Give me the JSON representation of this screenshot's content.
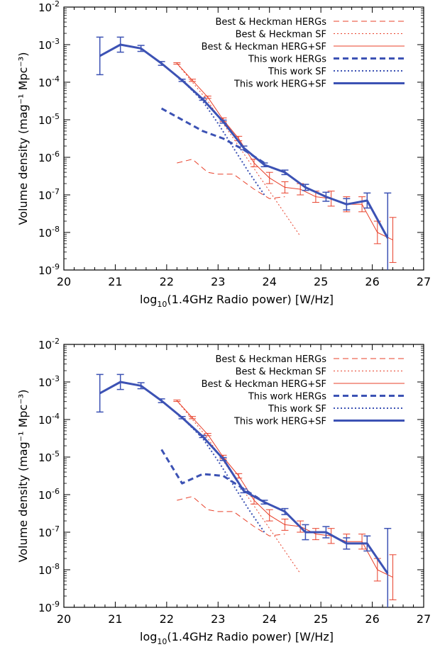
{
  "panels": [
    {
      "id": "top",
      "xlabel_pre": "log",
      "xlabel_sub": "10",
      "xlabel_post": "(1.4GHz Radio power) [W/Hz]",
      "ylabel": "Volume density (mag⁻¹ Mpc⁻³)"
    },
    {
      "id": "bottom",
      "xlabel_pre": "log",
      "xlabel_sub": "10",
      "xlabel_post": "(1.4GHz Radio power) [W/Hz]",
      "ylabel": "Volume density (mag⁻¹ Mpc⁻³)"
    }
  ],
  "colors": {
    "red": "#e8402a",
    "blue": "#3c52b4"
  },
  "chart_data": [
    {
      "type": "line",
      "title": "",
      "xlabel": "log10(1.4GHz Radio power) [W/Hz]",
      "ylabel": "Volume density (mag^-1 Mpc^-3)",
      "xlim": [
        20,
        27
      ],
      "ylim_log10": [
        -9,
        -2
      ],
      "yscale": "log",
      "xticks": [
        "20",
        "21",
        "22",
        "23",
        "24",
        "25",
        "26",
        "27"
      ],
      "yticks": [
        {
          "base": "10",
          "exp": "-2"
        },
        {
          "base": "10",
          "exp": "-3"
        },
        {
          "base": "10",
          "exp": "-4"
        },
        {
          "base": "10",
          "exp": "-5"
        },
        {
          "base": "10",
          "exp": "-6"
        },
        {
          "base": "10",
          "exp": "-7"
        },
        {
          "base": "10",
          "exp": "-8"
        },
        {
          "base": "10",
          "exp": "-9"
        }
      ],
      "legend_position": "top-right",
      "series": [
        {
          "name": "Best & Heckman HERGs",
          "color": "red",
          "style": "dashed",
          "width": 1,
          "points": [
            [
              22.2,
              -6.15
            ],
            [
              22.5,
              -6.05
            ],
            [
              22.8,
              -6.4
            ],
            [
              23.0,
              -6.45
            ],
            [
              23.3,
              -6.45
            ],
            [
              23.7,
              -6.85
            ],
            [
              24.0,
              -7.1
            ],
            [
              24.3,
              -7.05
            ]
          ]
        },
        {
          "name": "Best & Heckman SF",
          "color": "red",
          "style": "dotted",
          "width": 1,
          "points": [
            [
              22.2,
              -3.5
            ],
            [
              22.5,
              -4.0
            ],
            [
              22.8,
              -4.5
            ],
            [
              23.1,
              -5.1
            ],
            [
              23.5,
              -5.9
            ],
            [
              23.9,
              -6.7
            ],
            [
              24.3,
              -7.5
            ],
            [
              24.6,
              -8.1
            ]
          ]
        },
        {
          "name": "Best & Heckman HERG+SF",
          "color": "red",
          "style": "solid",
          "width": 1,
          "points": [
            [
              22.2,
              -3.5
            ],
            [
              22.5,
              -3.95
            ],
            [
              22.8,
              -4.4
            ],
            [
              23.1,
              -5.0
            ],
            [
              23.4,
              -5.5
            ],
            [
              23.7,
              -6.15
            ],
            [
              24.0,
              -6.55
            ],
            [
              24.3,
              -6.8
            ],
            [
              24.6,
              -6.85
            ],
            [
              24.9,
              -7.05
            ],
            [
              25.2,
              -7.1
            ],
            [
              25.5,
              -7.25
            ],
            [
              25.8,
              -7.25
            ],
            [
              26.1,
              -8.0
            ],
            [
              26.4,
              -8.2
            ]
          ],
          "errors": [
            0.02,
            0.03,
            0.03,
            0.05,
            0.06,
            0.1,
            0.15,
            0.15,
            0.15,
            0.15,
            0.2,
            0.2,
            0.2,
            0.3,
            0.6
          ]
        },
        {
          "name": "This work HERGs",
          "color": "blue",
          "style": "dashed",
          "width": 3,
          "points": [
            [
              21.9,
              -4.7
            ],
            [
              22.3,
              -5.0
            ],
            [
              22.7,
              -5.3
            ],
            [
              23.1,
              -5.5
            ],
            [
              23.5,
              -5.8
            ],
            [
              23.9,
              -6.15
            ]
          ]
        },
        {
          "name": "This work SF",
          "color": "blue",
          "style": "dotted",
          "width": 2,
          "points": [
            [
              21.9,
              -3.5
            ],
            [
              22.3,
              -3.95
            ],
            [
              22.7,
              -4.5
            ],
            [
              23.0,
              -5.1
            ],
            [
              23.3,
              -5.75
            ],
            [
              23.6,
              -6.4
            ],
            [
              23.9,
              -7.0
            ]
          ]
        },
        {
          "name": "This work HERG+SF",
          "color": "blue",
          "style": "solid",
          "width": 3,
          "points": [
            [
              20.7,
              -3.3
            ],
            [
              21.1,
              -3.0
            ],
            [
              21.5,
              -3.1
            ],
            [
              21.9,
              -3.5
            ],
            [
              22.3,
              -3.95
            ],
            [
              22.7,
              -4.45
            ],
            [
              23.1,
              -5.05
            ],
            [
              23.5,
              -5.75
            ],
            [
              23.9,
              -6.2
            ],
            [
              24.3,
              -6.4
            ],
            [
              24.7,
              -6.8
            ],
            [
              25.1,
              -7.05
            ],
            [
              25.5,
              -7.25
            ],
            [
              25.9,
              -7.15
            ],
            [
              26.3,
              -8.15
            ]
          ],
          "errors": [
            0.5,
            0.2,
            0.08,
            0.05,
            0.03,
            0.03,
            0.04,
            0.05,
            0.05,
            0.06,
            0.08,
            0.12,
            0.15,
            0.2,
            1.2
          ]
        }
      ]
    },
    {
      "type": "line",
      "title": "",
      "xlabel": "log10(1.4GHz Radio power) [W/Hz]",
      "ylabel": "Volume density (mag^-1 Mpc^-3)",
      "xlim": [
        20,
        27
      ],
      "ylim_log10": [
        -9,
        -2
      ],
      "yscale": "log",
      "xticks": [
        "20",
        "21",
        "22",
        "23",
        "24",
        "25",
        "26",
        "27"
      ],
      "yticks": [
        {
          "base": "10",
          "exp": "-2"
        },
        {
          "base": "10",
          "exp": "-3"
        },
        {
          "base": "10",
          "exp": "-4"
        },
        {
          "base": "10",
          "exp": "-5"
        },
        {
          "base": "10",
          "exp": "-6"
        },
        {
          "base": "10",
          "exp": "-7"
        },
        {
          "base": "10",
          "exp": "-8"
        },
        {
          "base": "10",
          "exp": "-9"
        }
      ],
      "legend_position": "top-right",
      "series": [
        {
          "name": "Best & Heckman HERGs",
          "color": "red",
          "style": "dashed",
          "width": 1,
          "points": [
            [
              22.2,
              -6.15
            ],
            [
              22.5,
              -6.05
            ],
            [
              22.8,
              -6.4
            ],
            [
              23.0,
              -6.45
            ],
            [
              23.3,
              -6.45
            ],
            [
              23.7,
              -6.85
            ],
            [
              24.0,
              -7.1
            ],
            [
              24.3,
              -7.05
            ]
          ]
        },
        {
          "name": "Best & Heckman SF",
          "color": "red",
          "style": "dotted",
          "width": 1,
          "points": [
            [
              22.2,
              -3.5
            ],
            [
              22.5,
              -4.0
            ],
            [
              22.8,
              -4.5
            ],
            [
              23.1,
              -5.1
            ],
            [
              23.5,
              -5.9
            ],
            [
              23.9,
              -6.7
            ],
            [
              24.3,
              -7.5
            ],
            [
              24.6,
              -8.1
            ]
          ]
        },
        {
          "name": "Best & Heckman HERG+SF",
          "color": "red",
          "style": "solid",
          "width": 1,
          "points": [
            [
              22.2,
              -3.5
            ],
            [
              22.5,
              -3.95
            ],
            [
              22.8,
              -4.4
            ],
            [
              23.1,
              -5.0
            ],
            [
              23.4,
              -5.5
            ],
            [
              23.7,
              -6.15
            ],
            [
              24.0,
              -6.55
            ],
            [
              24.3,
              -6.8
            ],
            [
              24.6,
              -6.85
            ],
            [
              24.9,
              -7.05
            ],
            [
              25.2,
              -7.1
            ],
            [
              25.5,
              -7.25
            ],
            [
              25.8,
              -7.25
            ],
            [
              26.1,
              -8.0
            ],
            [
              26.4,
              -8.2
            ]
          ],
          "errors": [
            0.02,
            0.03,
            0.03,
            0.05,
            0.06,
            0.1,
            0.15,
            0.15,
            0.15,
            0.15,
            0.2,
            0.2,
            0.2,
            0.3,
            0.6
          ]
        },
        {
          "name": "This work HERGs",
          "color": "blue",
          "style": "dashed",
          "width": 3,
          "points": [
            [
              21.9,
              -4.8
            ],
            [
              22.3,
              -5.7
            ],
            [
              22.7,
              -5.45
            ],
            [
              23.1,
              -5.5
            ],
            [
              23.5,
              -5.85
            ],
            [
              23.9,
              -6.2
            ]
          ]
        },
        {
          "name": "This work SF",
          "color": "blue",
          "style": "dotted",
          "width": 2,
          "points": [
            [
              21.9,
              -3.5
            ],
            [
              22.3,
              -3.95
            ],
            [
              22.7,
              -4.5
            ],
            [
              23.0,
              -5.1
            ],
            [
              23.3,
              -5.75
            ],
            [
              23.6,
              -6.4
            ],
            [
              23.9,
              -7.0
            ]
          ]
        },
        {
          "name": "This work HERG+SF",
          "color": "blue",
          "style": "solid",
          "width": 3,
          "points": [
            [
              20.7,
              -3.3
            ],
            [
              21.1,
              -3.0
            ],
            [
              21.5,
              -3.1
            ],
            [
              21.9,
              -3.5
            ],
            [
              22.3,
              -3.95
            ],
            [
              22.7,
              -4.45
            ],
            [
              23.1,
              -5.05
            ],
            [
              23.5,
              -5.9
            ],
            [
              23.9,
              -6.2
            ],
            [
              24.3,
              -6.45
            ],
            [
              24.7,
              -7.0
            ],
            [
              25.1,
              -7.0
            ],
            [
              25.5,
              -7.3
            ],
            [
              25.9,
              -7.3
            ],
            [
              26.3,
              -8.1
            ]
          ],
          "errors": [
            0.5,
            0.2,
            0.08,
            0.05,
            0.03,
            0.03,
            0.04,
            0.05,
            0.05,
            0.08,
            0.2,
            0.15,
            0.15,
            0.2,
            1.2
          ]
        }
      ]
    }
  ]
}
